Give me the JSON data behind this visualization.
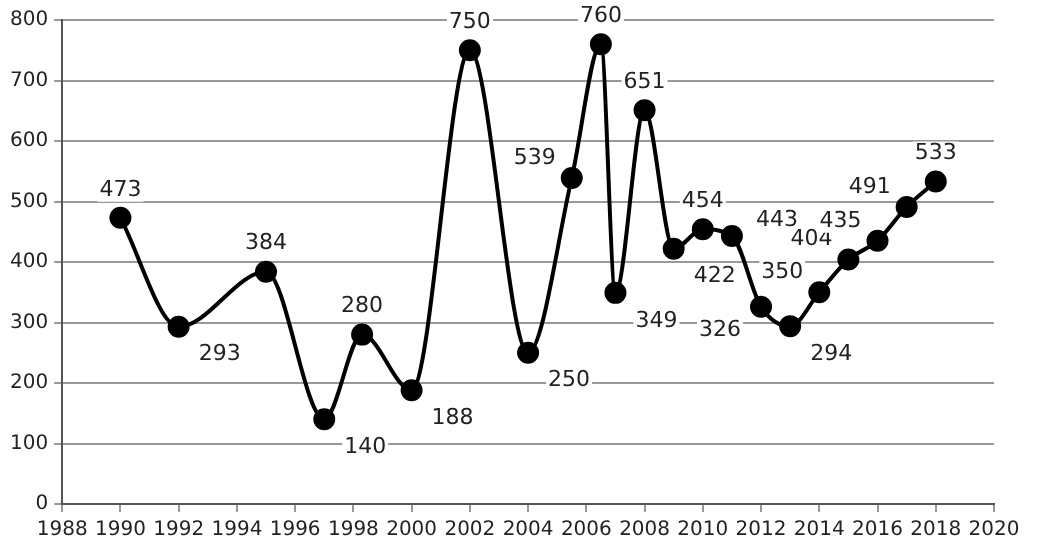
{
  "chart_data": {
    "type": "line",
    "x": [
      1990,
      1992,
      1995,
      1997,
      1998.3,
      2000,
      2002,
      2004,
      2005.5,
      2006.5,
      2007,
      2008,
      2009,
      2010,
      2011,
      2012,
      2013,
      2014,
      2015,
      2016,
      2017,
      2018
    ],
    "series": [
      {
        "color": "#000000",
        "values": [
          473,
          293,
          384,
          140,
          280,
          188,
          750,
          250,
          539,
          760,
          349,
          651,
          422,
          454,
          443,
          326,
          294,
          350,
          404,
          435,
          491,
          533
        ]
      }
    ],
    "xlim": [
      1988,
      2020
    ],
    "xticks": [
      1988,
      1990,
      1992,
      1994,
      1996,
      1998,
      2000,
      2002,
      2004,
      2006,
      2008,
      2010,
      2012,
      2014,
      2016,
      2018,
      2020
    ],
    "ylim": [
      0,
      800
    ],
    "yticks": [
      0,
      100,
      200,
      300,
      400,
      500,
      600,
      700,
      800
    ],
    "grid": "y",
    "legend": false,
    "marker": "circle",
    "line_style": "solid",
    "data_labels": true
  }
}
